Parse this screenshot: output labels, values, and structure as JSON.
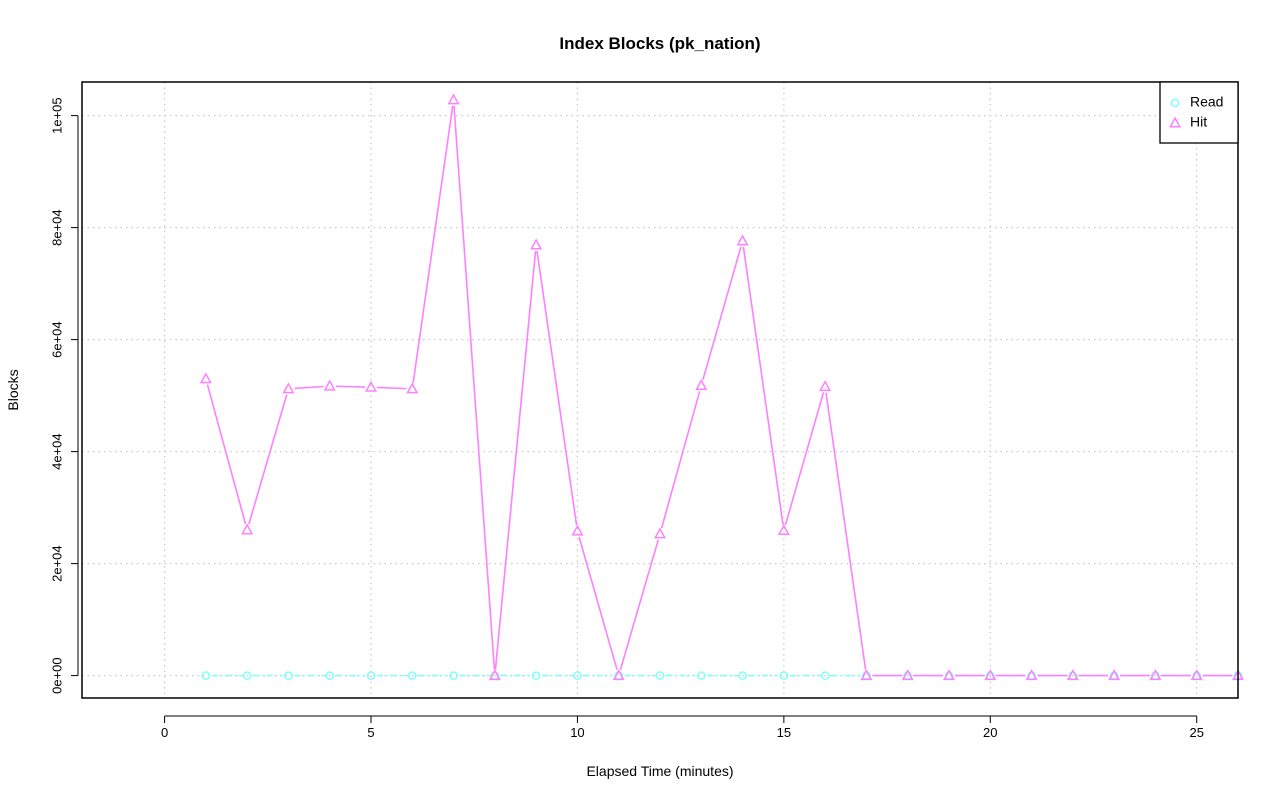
{
  "chart_data": {
    "type": "line",
    "title": "Index Blocks (pk_nation)",
    "xlabel": "Elapsed Time (minutes)",
    "ylabel": "Blocks",
    "xlim": [
      -2,
      26
    ],
    "ylim": [
      -4000,
      106000
    ],
    "x_ticks": [
      0,
      5,
      10,
      15,
      20,
      25
    ],
    "x_tick_labels": [
      "0",
      "5",
      "10",
      "15",
      "20",
      "25"
    ],
    "y_ticks": [
      0,
      20000,
      40000,
      60000,
      80000,
      100000
    ],
    "y_tick_labels": [
      "0e+00",
      "2e+04",
      "4e+04",
      "6e+04",
      "8e+04",
      "1e+05"
    ],
    "grid": true,
    "legend_position": "top-right",
    "x": [
      1,
      2,
      3,
      4,
      5,
      6,
      7,
      8,
      9,
      10,
      11,
      12,
      13,
      14,
      15,
      16,
      17,
      18,
      19,
      20,
      21,
      22,
      23,
      24,
      25,
      26
    ],
    "series": [
      {
        "name": "Read",
        "color": "#7fffff",
        "marker": "circle",
        "line": "dashed",
        "values": [
          0,
          0,
          0,
          0,
          0,
          0,
          0,
          0,
          0,
          0,
          0,
          0,
          0,
          0,
          0,
          0,
          0,
          0,
          0,
          0,
          0,
          0,
          0,
          0,
          0,
          0
        ]
      },
      {
        "name": "Hit",
        "color": "#ff80ff",
        "marker": "triangle",
        "line": "solid",
        "values": [
          53000,
          26000,
          51200,
          51700,
          51500,
          51200,
          102800,
          0,
          76900,
          25800,
          0,
          25300,
          51800,
          77600,
          25900,
          51600,
          0,
          0,
          0,
          0,
          0,
          0,
          0,
          0,
          0,
          0
        ]
      }
    ]
  }
}
